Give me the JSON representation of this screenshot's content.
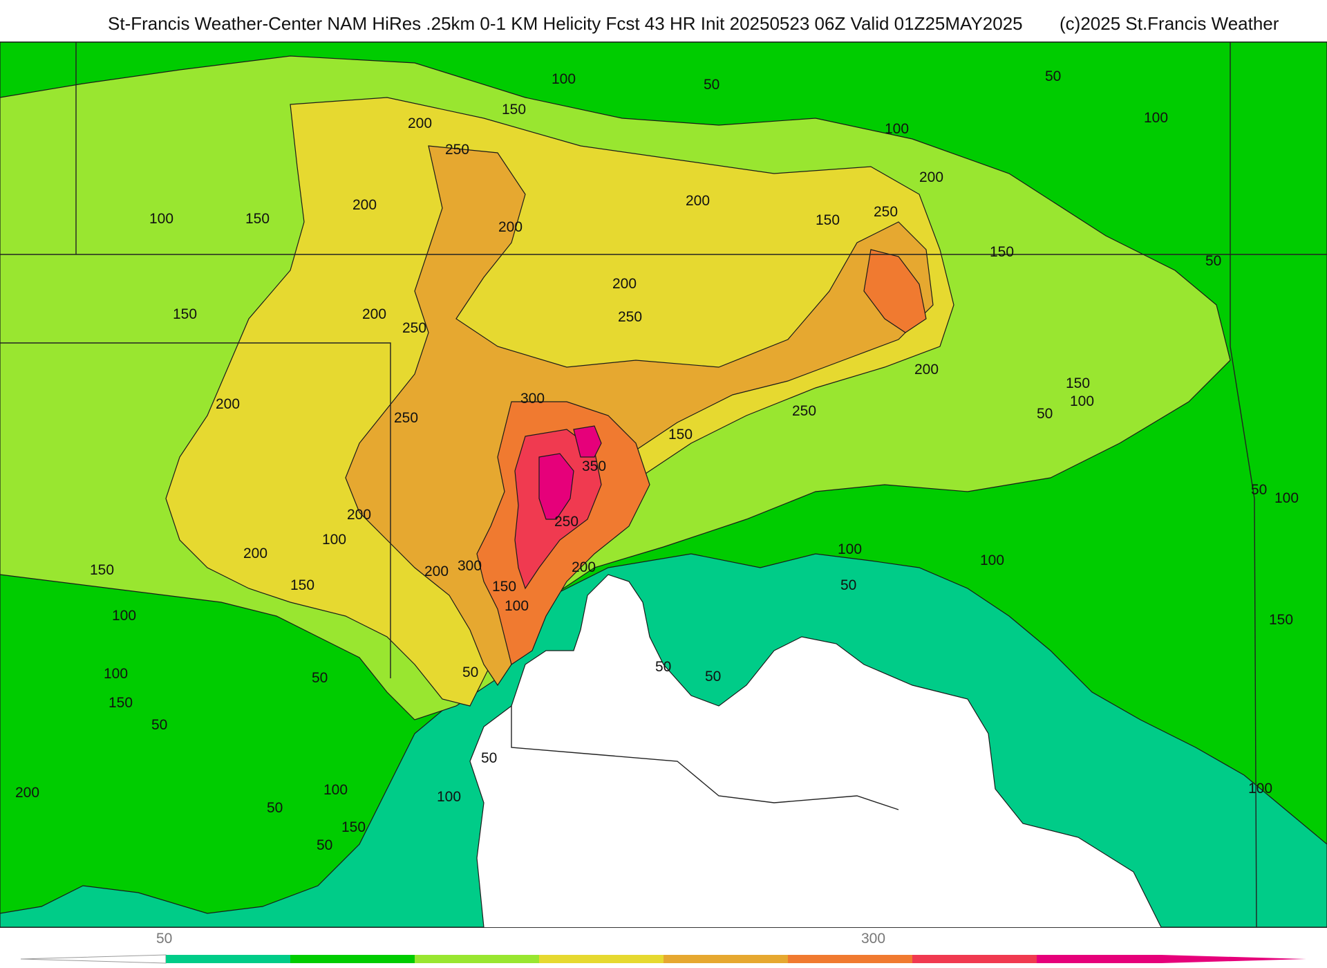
{
  "header": {
    "title": "St-Francis Weather-Center NAM HiRes .25km 0-1 KM Helicity Fcst 43 HR Init 20250523 06Z  Valid 01Z25MAY2025",
    "copyright": "(c)2025 St.Francis Weather"
  },
  "map": {
    "variable": "0-1 KM Helicity",
    "fill_levels": [
      50,
      100,
      150,
      200,
      250,
      300,
      350,
      400
    ],
    "fill_colors": [
      "#00cc88",
      "#00cc00",
      "#99e630",
      "#e6d930",
      "#e6a830",
      "#f07a30",
      "#f03a50",
      "#e6007a"
    ],
    "below_min_color": "#ffffff",
    "contour_labels": [
      "50",
      "100",
      "150",
      "200",
      "250",
      "300",
      "350"
    ]
  },
  "colorbar": {
    "tick_labels": [
      "50",
      "300"
    ]
  }
}
